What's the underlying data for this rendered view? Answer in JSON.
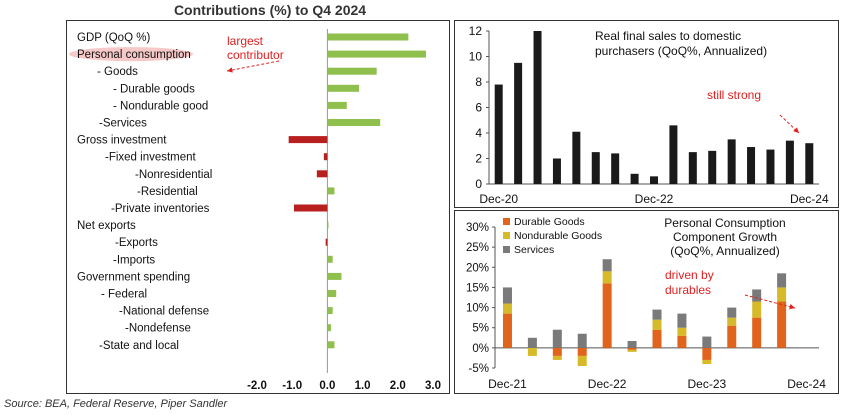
{
  "page": {
    "title": "Contributions (%) to Q4 2024",
    "source": "Source: BEA, Federal Reserve, Piper Sandler"
  },
  "colors": {
    "positive": "#8fbf4d",
    "negative": "#b81f1f",
    "black_bar": "#1a1a1a",
    "durable": "#e0641b",
    "nondurable": "#d6ba2a",
    "services": "#7a7a7a",
    "annotation": "#e02020"
  },
  "chart_data": [
    {
      "type": "bar",
      "orientation": "horizontal",
      "title": "Contributions (%) to Q4 2024",
      "categories": [
        "GDP (QoQ %)",
        "Personal consumption",
        "- Goods",
        "- Durable goods",
        "- Nondurable good",
        "-Services",
        "Gross investment",
        "-Fixed investment",
        "-Nonresidential",
        "-Residential",
        "-Private inventories",
        "Net exports",
        "-Exports",
        "-Imports",
        "Government spending",
        "- Federal",
        "-National defense",
        "-Nondefense",
        "-State and local"
      ],
      "values": [
        2.3,
        2.8,
        1.4,
        0.9,
        0.55,
        1.5,
        -1.1,
        -0.1,
        -0.3,
        0.2,
        -0.95,
        0.03,
        -0.05,
        0.15,
        0.4,
        0.25,
        0.15,
        0.1,
        0.2
      ],
      "xlim": [
        -2.0,
        3.0
      ],
      "xticks": [
        "-2.0",
        "-1.0",
        "0.0",
        "1.0",
        "2.0",
        "3.0"
      ],
      "annotations": [
        {
          "text": "largest\ncontributor",
          "target": "Personal consumption"
        }
      ]
    },
    {
      "type": "bar",
      "title": "Real final sales to domestic\npurchasers (QoQ%, Annualized)",
      "categories": [
        "Dec-20",
        "Mar-21",
        "Jun-21",
        "Sep-21",
        "Dec-21",
        "Mar-22",
        "Jun-22",
        "Sep-22",
        "Dec-22",
        "Mar-23",
        "Jun-23",
        "Sep-23",
        "Dec-23",
        "Mar-24",
        "Jun-24",
        "Sep-24",
        "Dec-24"
      ],
      "values": [
        7.8,
        9.5,
        12.0,
        2.0,
        4.1,
        2.5,
        2.4,
        0.8,
        0.6,
        4.6,
        2.5,
        2.6,
        3.5,
        2.9,
        2.7,
        3.4,
        3.2
      ],
      "ylim": [
        0,
        12
      ],
      "yticks": [
        "0",
        "2",
        "4",
        "6",
        "8",
        "10",
        "12"
      ],
      "xtick_labels": [
        "Dec-20",
        "Dec-22",
        "Dec-24"
      ],
      "annotations": [
        {
          "text": "still strong",
          "target": "Dec-24"
        }
      ]
    },
    {
      "type": "bar",
      "stacked": true,
      "title": "Personal Consumption\nComponent Growth\n(QoQ%, Annualized)",
      "categories": [
        "Dec-21",
        "Mar-22",
        "Jun-22",
        "Sep-22",
        "Dec-22",
        "Mar-23",
        "Jun-23",
        "Sep-23",
        "Dec-23",
        "Mar-24",
        "Jun-24",
        "Sep-24",
        "Dec-24"
      ],
      "series": [
        {
          "name": "Durable Goods",
          "values": [
            8.5,
            0.0,
            -2.0,
            -2.0,
            16.0,
            -0.5,
            4.5,
            3.0,
            -3.0,
            5.5,
            7.5,
            11.5,
            0.0
          ]
        },
        {
          "name": "Nondurable Goods",
          "values": [
            2.5,
            -2.0,
            -1.0,
            -2.5,
            3.0,
            -0.5,
            2.5,
            2.0,
            -1.0,
            2.0,
            4.0,
            3.5,
            0.0
          ]
        },
        {
          "name": "Services",
          "values": [
            4.0,
            2.5,
            4.5,
            3.5,
            3.0,
            1.7,
            2.5,
            3.5,
            2.8,
            2.5,
            3.0,
            3.5,
            0.0
          ]
        }
      ],
      "ylim": [
        -5,
        30
      ],
      "yticks": [
        "-5%",
        "0%",
        "5%",
        "10%",
        "15%",
        "20%",
        "25%",
        "30%"
      ],
      "xtick_labels": [
        "Dec-21",
        "Dec-22",
        "Dec-23",
        "Dec-24"
      ],
      "legend": "top-left",
      "annotations": [
        {
          "text": "driven by\ndurables",
          "target": "Dec-24"
        }
      ]
    }
  ]
}
